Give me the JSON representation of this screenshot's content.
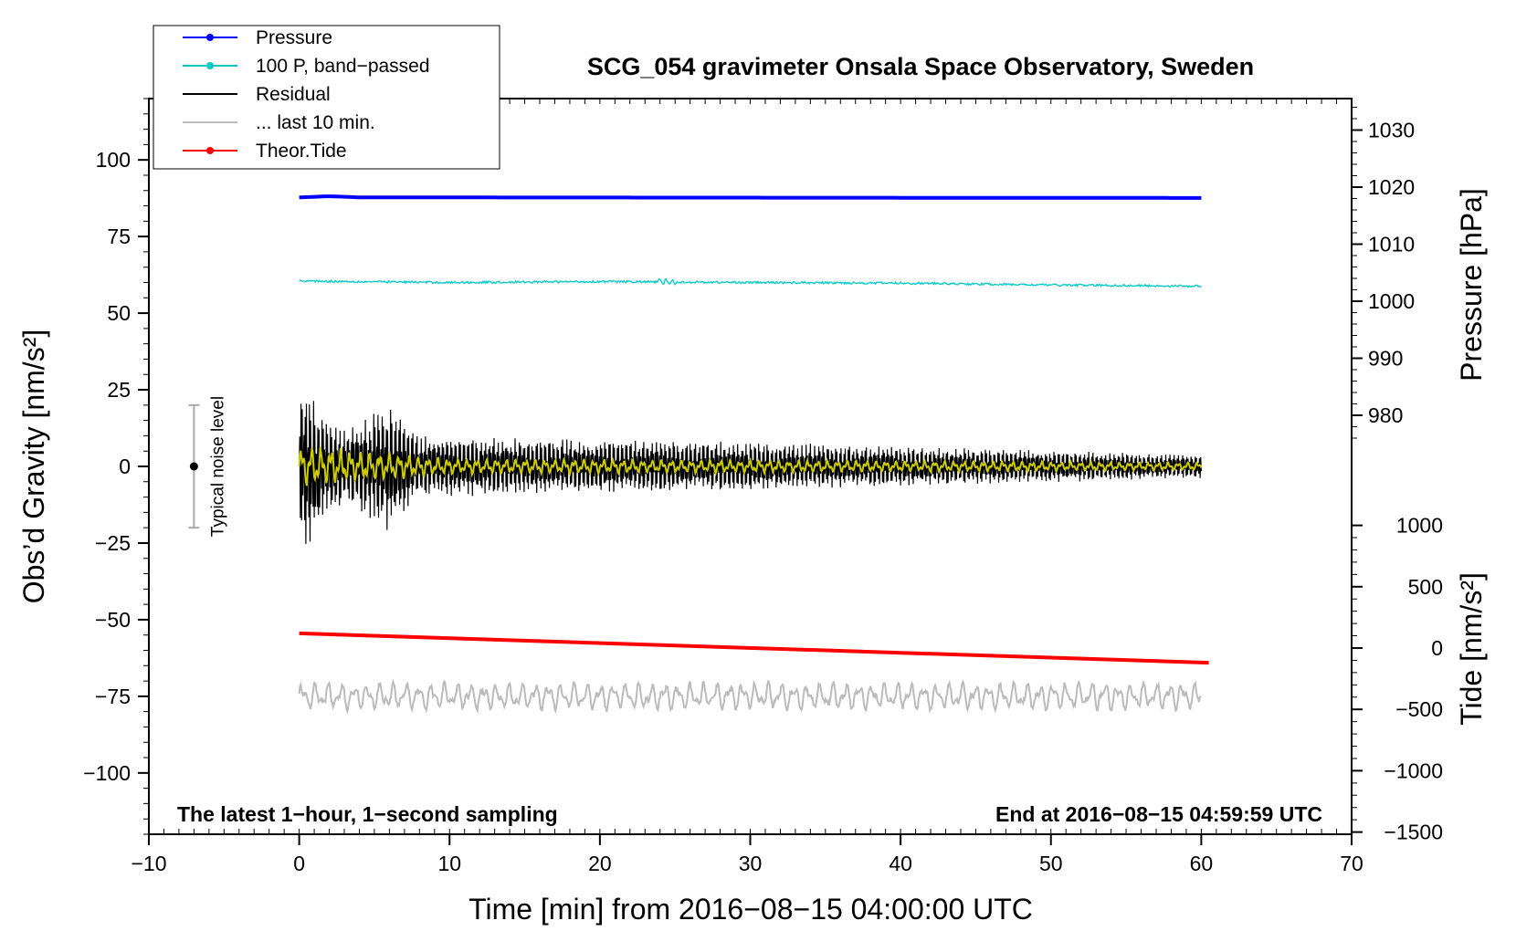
{
  "chart_data": {
    "type": "line",
    "title": "SCG_054 gravimeter Onsala Space Observatory, Sweden",
    "xlabel": "Time [min] from 2016−08−15 04:00:00 UTC",
    "ylabel_left": "Obs’d Gravity [nm/s²]",
    "ylabel_right_top": "Pressure [hPa]",
    "ylabel_right_bottom": "Tide [nm/s²]",
    "xlim": [
      -10,
      70
    ],
    "ylim_left": [
      -120,
      120
    ],
    "xticks": [
      {
        "value": -10,
        "label": "−10"
      },
      {
        "value": 0,
        "label": "0"
      },
      {
        "value": 10,
        "label": "10"
      },
      {
        "value": 20,
        "label": "20"
      },
      {
        "value": 30,
        "label": "30"
      },
      {
        "value": 40,
        "label": "40"
      },
      {
        "value": 50,
        "label": "50"
      },
      {
        "value": 60,
        "label": "60"
      },
      {
        "value": 70,
        "label": "70"
      }
    ],
    "yticks_left": [
      {
        "value": 100,
        "label": "100"
      },
      {
        "value": 75,
        "label": "75"
      },
      {
        "value": 50,
        "label": "50"
      },
      {
        "value": 25,
        "label": "25"
      },
      {
        "value": 0,
        "label": "0"
      },
      {
        "value": -25,
        "label": "−25"
      },
      {
        "value": -50,
        "label": "−50"
      },
      {
        "value": -75,
        "label": "−75"
      },
      {
        "value": -100,
        "label": "−100"
      }
    ],
    "yticks_pressure": [
      {
        "value": 1030,
        "label": "1030"
      },
      {
        "value": 1020,
        "label": "1020"
      },
      {
        "value": 1010,
        "label": "1010"
      },
      {
        "value": 1000,
        "label": "1000"
      },
      {
        "value": 990,
        "label": "990"
      },
      {
        "value": 980,
        "label": "980"
      }
    ],
    "yticks_tide": [
      {
        "value": 1000,
        "label": "1000"
      },
      {
        "value": 500,
        "label": "500"
      },
      {
        "value": 0,
        "label": "0"
      },
      {
        "value": -500,
        "label": "−500"
      },
      {
        "value": -1000,
        "label": "−1000"
      },
      {
        "value": -1500,
        "label": "−1500"
      }
    ],
    "legend": [
      {
        "label": "Pressure",
        "color": "#0000ff",
        "marker": true
      },
      {
        "label": "100 P, band−passed",
        "color": "#00c8c8",
        "marker": true
      },
      {
        "label": "Residual",
        "color": "#000000",
        "marker": false
      },
      {
        "label": "... last 10 min.",
        "color": "#bbbbbb",
        "marker": false
      },
      {
        "label": "Theor.Tide",
        "color": "#ff0000",
        "marker": true
      }
    ],
    "legend_position": "top-left",
    "annotation_left": "The latest 1−hour, 1−second sampling",
    "annotation_right": "End at 2016−08−15 04:59:59 UTC",
    "noise_label": "Typical noise level",
    "noise_level": {
      "x": -7,
      "center": 0,
      "halfwidth": 20
    },
    "series": [
      {
        "name": "Pressure",
        "color": "#0000ff",
        "axis": "pressure",
        "x": [
          0,
          2,
          4,
          60
        ],
        "y": [
          1018.2,
          1018.4,
          1018.2,
          1018.1
        ]
      },
      {
        "name": "100 P, band−passed",
        "color": "#00c8c8",
        "axis": "left",
        "x": [
          0,
          10,
          20,
          30,
          40,
          50,
          60
        ],
        "y": [
          60.5,
          60.0,
          60.3,
          60.0,
          59.8,
          59.2,
          58.8
        ]
      },
      {
        "name": "Theor.Tide",
        "color": "#ff0000",
        "axis": "tide",
        "x": [
          0,
          60.5
        ],
        "y": [
          120,
          -120
        ]
      },
      {
        "name": "Residual",
        "color": "#000000",
        "axis": "left",
        "x_range": [
          0,
          60
        ],
        "amplitude_envelope": [
          [
            0,
            30
          ],
          [
            1.5,
            20
          ],
          [
            3,
            12
          ],
          [
            6,
            22
          ],
          [
            8,
            10
          ],
          [
            30,
            8
          ],
          [
            60,
            4
          ]
        ]
      },
      {
        "name": "... last 10 min.",
        "color": "#bbbbbb",
        "axis": "left",
        "x_range": [
          0,
          60
        ],
        "offset": -75,
        "amplitude": 5
      },
      {
        "name": "smoothed",
        "color": "#cccc00",
        "axis": "left",
        "x_range": [
          0,
          60
        ],
        "amplitude_envelope": [
          [
            0,
            8
          ],
          [
            10,
            3
          ],
          [
            60,
            1.5
          ]
        ]
      }
    ]
  }
}
